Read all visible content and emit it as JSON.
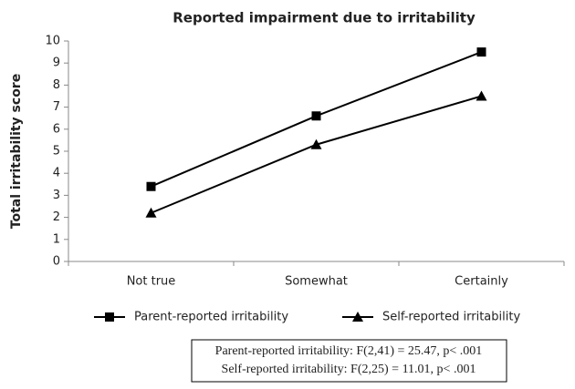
{
  "chart_data": {
    "type": "line",
    "title": "Reported impairment due to irritability",
    "y_label": "Total irritability score",
    "categories": [
      "Not true",
      "Somewhat",
      "Certainly"
    ],
    "series": [
      {
        "name": "Parent-reported irritability",
        "color": "#000000",
        "marker": "square",
        "values": [
          3.4,
          6.6,
          9.5
        ]
      },
      {
        "name": "Self-reported irritability",
        "color": "#000000",
        "marker": "triangle",
        "values": [
          2.2,
          5.3,
          7.5
        ]
      }
    ],
    "ylim": [
      0,
      10
    ],
    "yticks": [
      0,
      1,
      2,
      3,
      4,
      5,
      6,
      7,
      8,
      9,
      10
    ],
    "legend": "bottom",
    "annotations": [
      "Parent-reported irritability: F(2,41) = 25.47,   p< .001",
      "Self-reported irritability: F(2,25) = 11.01,   p< .001"
    ]
  }
}
